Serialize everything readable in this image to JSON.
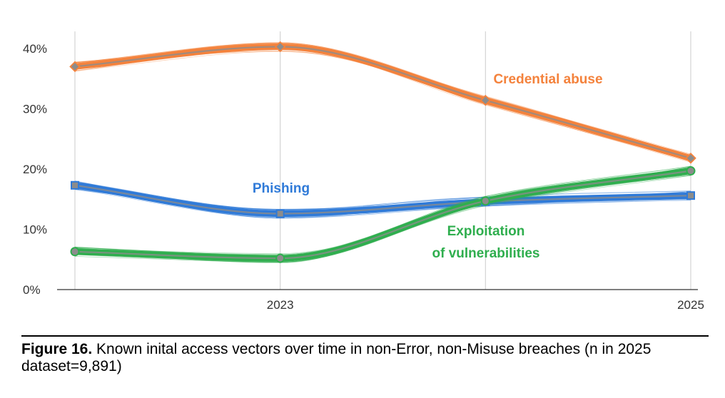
{
  "chart_data": {
    "type": "line",
    "x": [
      2022,
      2023,
      2024,
      2025
    ],
    "xlim": [
      2022,
      2025
    ],
    "ylim": [
      0,
      40
    ],
    "y_ticks": [
      {
        "value": 0,
        "label": "0%"
      },
      {
        "value": 10,
        "label": "10%"
      },
      {
        "value": 20,
        "label": "20%"
      },
      {
        "value": 30,
        "label": "30%"
      },
      {
        "value": 40,
        "label": "40%"
      }
    ],
    "x_ticks": [
      {
        "value": 2023,
        "label": "2023"
      },
      {
        "value": 2025,
        "label": "2025"
      }
    ],
    "grid": "vertical",
    "series": [
      {
        "name": "Credential abuse",
        "values": [
          37,
          40.3,
          31.4,
          21.8
        ],
        "color": "#f4823c",
        "marker": "diamond",
        "label_lines": [
          "Credential abuse"
        ]
      },
      {
        "name": "Phishing",
        "values": [
          17.3,
          12.6,
          14.6,
          15.6
        ],
        "color": "#2f7ad8",
        "marker": "square",
        "label_lines": [
          "Phishing"
        ]
      },
      {
        "name": "Exploitation of vulnerabilities",
        "values": [
          6.3,
          5.2,
          14.7,
          19.7
        ],
        "color": "#2fae4e",
        "marker": "circle",
        "label_lines": [
          "Exploitation",
          "of vulnerabilities"
        ]
      }
    ]
  },
  "caption": {
    "figure_label": "Figure 16.",
    "text": " Known inital access vectors over time in non-Error, non-Misuse breaches (n in 2025 dataset=9,891)"
  }
}
